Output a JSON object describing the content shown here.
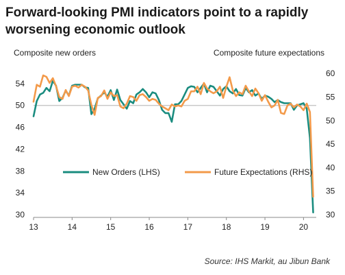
{
  "title": "Forward-looking PMI indicators point to a rapidly worsening economic outlook",
  "left_axis_caption": "Composite new orders",
  "right_axis_caption": "Composite future  expectations",
  "source": "Source: IHS Markit, au Jibun Bank",
  "colors": {
    "new_orders": "#1a8c7f",
    "future_expectations": "#f39a4a",
    "axis": "#888888",
    "grid_ref": "#bfbfbf"
  },
  "chart_data": {
    "type": "line",
    "title": "Forward-looking PMI indicators point to a rapidly worsening economic outlook",
    "xlabel": "",
    "x_ticks": [
      "13",
      "14",
      "15",
      "16",
      "17",
      "18",
      "19",
      "20"
    ],
    "x_range": [
      2013.0,
      2020.33
    ],
    "y_left": {
      "label": "Composite new orders",
      "range": [
        30,
        58
      ],
      "ticks": [
        30,
        34,
        38,
        42,
        46,
        50,
        54
      ]
    },
    "y_right": {
      "label": "Composite future  expectations",
      "range": [
        30,
        62.5
      ],
      "ticks": [
        30,
        35,
        40,
        45,
        50,
        55,
        60
      ]
    },
    "reference_line_left": 50,
    "legend": {
      "position": "center",
      "entries": [
        "New Orders (LHS)",
        "Future Expectations (RHS)"
      ]
    },
    "series": [
      {
        "name": "New Orders (LHS)",
        "axis": "left",
        "color": "#1a8c7f",
        "start": "2013-01",
        "values": [
          48.0,
          50.8,
          52.0,
          52.3,
          53.2,
          52.6,
          54.5,
          53.6,
          50.8,
          51.4,
          52.7,
          51.8,
          53.6,
          53.8,
          53.8,
          53.8,
          53.3,
          53.2,
          48.4,
          49.4,
          51.3,
          51.8,
          52.4,
          51.6,
          52.8,
          51.0,
          52.9,
          51.0,
          50.2,
          49.4,
          50.8,
          50.4,
          52.0,
          52.4,
          53.0,
          52.4,
          51.5,
          52.4,
          52.2,
          51.0,
          49.2,
          48.6,
          48.6,
          47.0,
          50.2,
          50.2,
          50.8,
          52.0,
          53.2,
          53.5,
          53.4,
          52.4,
          53.2,
          54.0,
          52.4,
          53.6,
          53.4,
          52.6,
          51.8,
          53.0,
          53.5,
          52.6,
          52.2,
          53.0,
          51.9,
          51.8,
          53.2,
          52.4,
          52.8,
          51.8,
          52.2,
          51.2,
          51.8,
          51.6,
          51.2,
          50.6,
          51.0,
          50.6,
          50.4,
          50.4,
          50.4,
          49.2,
          50.0,
          50.2,
          50.4,
          49.4,
          44.0,
          30.4
        ]
      },
      {
        "name": "Future Expectations (RHS)",
        "axis": "right",
        "color": "#f39a4a",
        "start": "2013-01",
        "values": [
          54.0,
          57.6,
          57.2,
          59.6,
          59.3,
          58.0,
          59.0,
          57.3,
          55.0,
          54.6,
          56.5,
          55.2,
          57.2,
          57.4,
          57.0,
          57.6,
          57.2,
          56.4,
          53.3,
          51.2,
          54.8,
          55.2,
          56.4,
          54.6,
          56.0,
          55.2,
          55.4,
          53.0,
          52.6,
          53.6,
          55.2,
          55.0,
          54.2,
          55.4,
          55.6,
          55.0,
          54.2,
          54.6,
          54.4,
          53.6,
          53.0,
          52.6,
          52.2,
          53.4,
          53.0,
          53.2,
          53.0,
          54.2,
          54.6,
          56.2,
          56.2,
          57.2,
          55.6,
          58.0,
          56.8,
          56.2,
          55.8,
          56.2,
          57.2,
          54.8,
          57.2,
          59.2,
          56.4,
          55.2,
          56.0,
          55.6,
          57.4,
          56.2,
          55.2,
          56.8,
          55.8,
          54.2,
          55.4,
          54.0,
          52.8,
          53.2,
          54.4,
          51.6,
          51.4,
          53.2,
          53.6,
          52.8,
          53.4,
          53.0,
          52.2,
          53.6,
          51.8,
          33.8
        ]
      }
    ]
  }
}
